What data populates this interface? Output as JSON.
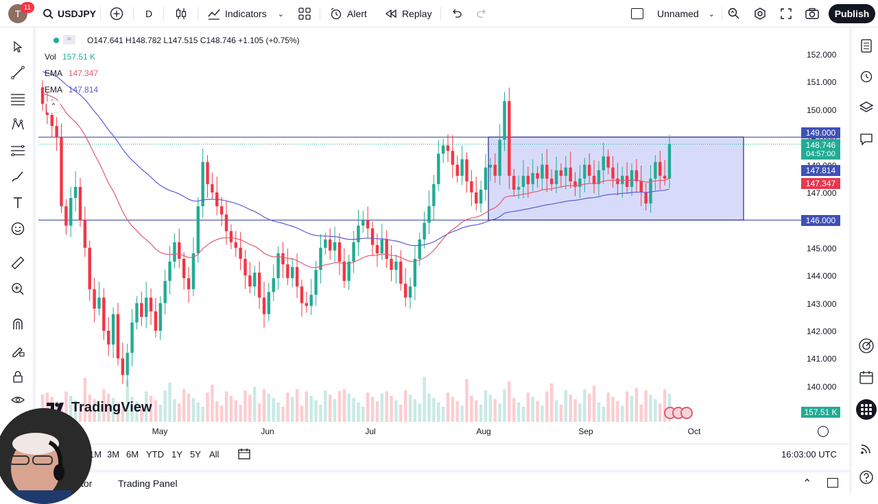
{
  "topbar": {
    "avatar_letter": "T",
    "notification_count": "11",
    "symbol": "USDJPY",
    "interval": "D",
    "indicators_label": "Indicators",
    "alert_label": "Alert",
    "replay_label": "Replay",
    "layout_name": "Unnamed",
    "publish_label": "Publish"
  },
  "legend": {
    "ohlc": "O147.641  H148.782  L147.515  C148.746  +1.105 (+0.75%)",
    "vol_label": "Vol",
    "vol_value": "157.51 K",
    "ema1_label": "EMA",
    "ema1_value": "147.347",
    "ema2_label": "EMA",
    "ema2_value": "147.814"
  },
  "price_axis": {
    "ticks": [
      "152.000",
      "151.000",
      "150.000",
      "149.000",
      "148.000",
      "147.000",
      "146.000",
      "145.000",
      "144.000",
      "143.000",
      "142.000",
      "141.000",
      "140.000"
    ],
    "tag_149": "149.000",
    "tag_last": "148.746",
    "tag_countdown": "04:57:00",
    "tag_ema2": "147.814",
    "tag_ema1": "147.347",
    "tag_146": "146.000",
    "tag_vol": "157.51 K"
  },
  "time_axis": {
    "labels": [
      "May",
      "Jun",
      "Jul",
      "Aug",
      "Sep",
      "Oct"
    ]
  },
  "ranges": [
    "1M",
    "3M",
    "6M",
    "YTD",
    "1Y",
    "5Y",
    "All"
  ],
  "clock": "16:03:00 UTC",
  "footer": {
    "screener_tab": "Stock Screener",
    "screener_visible": "tor",
    "trading_panel": "Trading Panel"
  },
  "watermark": "TradingView",
  "colors": {
    "up": "#22ab94",
    "down": "#f23645",
    "ema_slow": "#5b5bd6",
    "ema_fast": "#e05a6e",
    "box_fill": "#c9cff7",
    "box_stroke": "#1e2a8c",
    "hline": "#2f3e9e"
  },
  "chart_data": {
    "type": "candlestick",
    "symbol": "USDJPY",
    "interval": "D",
    "ylim": [
      139.5,
      152.5
    ],
    "x_labels": [
      "May",
      "Jun",
      "Jul",
      "Aug",
      "Sep",
      "Oct"
    ],
    "horizontal_lines": [
      149.0,
      146.0
    ],
    "range_box": {
      "top": 149.0,
      "bottom": 146.0,
      "from": "Aug",
      "to": "Oct"
    },
    "last": {
      "open": 147.641,
      "high": 148.782,
      "low": 147.515,
      "close": 148.746
    },
    "ema_fast_last": 147.347,
    "ema_slow_last": 147.814,
    "volume_last": "157.51 K"
  }
}
